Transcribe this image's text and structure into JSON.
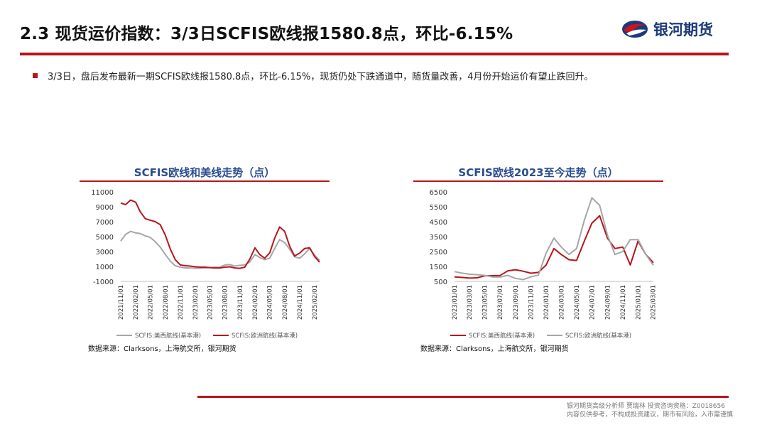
{
  "header": {
    "title": "2.3 现货运价指数：3/3日SCFIS欧线报1580.8点，环比-6.15%",
    "logo_text": "银河期货"
  },
  "bullet": {
    "text": "3/3日，盘后发布最新一期SCFIS欧线报1580.8点，环比-6.15%，现货仍处下跌通道中，随货量改善，4月份开始运价有望止跌回升。"
  },
  "colors": {
    "accent_red": "#b7151b",
    "navy": "#1f3a7a",
    "grey_series": "#a6a6a6"
  },
  "chart_data": [
    {
      "type": "line",
      "title": "SCFIS欧线和美线走势（点）",
      "ylim": [
        -1000,
        11000
      ],
      "yticks": [
        11000,
        9000,
        7000,
        5000,
        3000,
        1000,
        -1000
      ],
      "x_ticks": [
        "2021/11/01",
        "2022/02/01",
        "2022/05/01",
        "2022/08/01",
        "2022/11/01",
        "2023/02/01",
        "2023/05/01",
        "2023/08/01",
        "2023/11/01",
        "2024/02/01",
        "2024/05/01",
        "2024/08/01",
        "2024/11/01",
        "2025/02/01"
      ],
      "x_range": [
        "2021/11/01",
        "2025/03/03"
      ],
      "series": [
        {
          "name": "SCFIS:美西航线(基本港)",
          "color": "#a6a6a6",
          "points": [
            [
              "2021/11/01",
              4400
            ],
            [
              "2021/12/01",
              5300
            ],
            [
              "2022/01/01",
              5700
            ],
            [
              "2022/02/01",
              5500
            ],
            [
              "2022/03/01",
              5400
            ],
            [
              "2022/04/01",
              5100
            ],
            [
              "2022/05/01",
              4900
            ],
            [
              "2022/06/01",
              4300
            ],
            [
              "2022/07/01",
              3600
            ],
            [
              "2022/08/01",
              2600
            ],
            [
              "2022/09/01",
              1700
            ],
            [
              "2022/10/01",
              1100
            ],
            [
              "2022/11/01",
              900
            ],
            [
              "2022/12/01",
              800
            ],
            [
              "2023/01/01",
              800
            ],
            [
              "2023/02/01",
              750
            ],
            [
              "2023/03/01",
              750
            ],
            [
              "2023/04/01",
              800
            ],
            [
              "2023/05/01",
              850
            ],
            [
              "2023/06/01",
              900
            ],
            [
              "2023/07/01",
              900
            ],
            [
              "2023/08/01",
              1200
            ],
            [
              "2023/09/01",
              1250
            ],
            [
              "2023/10/01",
              1050
            ],
            [
              "2023/11/01",
              1150
            ],
            [
              "2023/12/01",
              1200
            ],
            [
              "2024/01/01",
              1600
            ],
            [
              "2024/02/01",
              2600
            ],
            [
              "2024/03/01",
              2200
            ],
            [
              "2024/04/01",
              1900
            ],
            [
              "2024/05/01",
              2100
            ],
            [
              "2024/06/01",
              3400
            ],
            [
              "2024/07/01",
              4600
            ],
            [
              "2024/08/01",
              4200
            ],
            [
              "2024/09/01",
              3300
            ],
            [
              "2024/10/01",
              2300
            ],
            [
              "2024/11/01",
              2100
            ],
            [
              "2024/12/01",
              2700
            ],
            [
              "2025/01/01",
              3400
            ],
            [
              "2025/02/01",
              2500
            ],
            [
              "2025/03/03",
              1800
            ]
          ]
        },
        {
          "name": "SCFIS:欧洲航线(基本港)",
          "color": "#b7151b",
          "points": [
            [
              "2021/11/01",
              9500
            ],
            [
              "2021/12/01",
              9300
            ],
            [
              "2022/01/01",
              9900
            ],
            [
              "2022/02/01",
              9600
            ],
            [
              "2022/03/01",
              8300
            ],
            [
              "2022/04/01",
              7400
            ],
            [
              "2022/05/01",
              7200
            ],
            [
              "2022/06/01",
              7000
            ],
            [
              "2022/07/01",
              6600
            ],
            [
              "2022/08/01",
              5200
            ],
            [
              "2022/09/01",
              3300
            ],
            [
              "2022/10/01",
              1900
            ],
            [
              "2022/11/01",
              1200
            ],
            [
              "2022/12/01",
              1100
            ],
            [
              "2023/01/01",
              1050
            ],
            [
              "2023/02/01",
              950
            ],
            [
              "2023/03/01",
              900
            ],
            [
              "2023/04/01",
              900
            ],
            [
              "2023/05/01",
              850
            ],
            [
              "2023/06/01",
              800
            ],
            [
              "2023/07/01",
              800
            ],
            [
              "2023/08/01",
              900
            ],
            [
              "2023/09/01",
              950
            ],
            [
              "2023/10/01",
              800
            ],
            [
              "2023/11/01",
              750
            ],
            [
              "2023/12/01",
              900
            ],
            [
              "2024/01/01",
              2000
            ],
            [
              "2024/02/01",
              3500
            ],
            [
              "2024/03/01",
              2600
            ],
            [
              "2024/04/01",
              2100
            ],
            [
              "2024/05/01",
              2800
            ],
            [
              "2024/06/01",
              4800
            ],
            [
              "2024/07/01",
              6300
            ],
            [
              "2024/08/01",
              5700
            ],
            [
              "2024/09/01",
              3700
            ],
            [
              "2024/10/01",
              2400
            ],
            [
              "2024/11/01",
              2800
            ],
            [
              "2024/12/01",
              3400
            ],
            [
              "2025/01/01",
              3500
            ],
            [
              "2025/02/01",
              2300
            ],
            [
              "2025/03/03",
              1580.8
            ]
          ]
        }
      ],
      "legend": "bottom",
      "source": "数据来源：Clarksons，上海航交所，银河期货"
    },
    {
      "type": "line",
      "title": "SCFIS欧线2023至今走势（点）",
      "ylim": [
        500,
        6500
      ],
      "yticks": [
        6500,
        5500,
        4500,
        3500,
        2500,
        1500,
        500
      ],
      "x_ticks": [
        "2023/01/01",
        "2023/03/01",
        "2023/05/01",
        "2023/07/01",
        "2023/09/01",
        "2023/11/01",
        "2024/01/01",
        "2024/03/01",
        "2024/05/01",
        "2024/07/01",
        "2024/09/01",
        "2024/11/01",
        "2025/01/01",
        "2025/03/01"
      ],
      "x_range": [
        "2023/01/01",
        "2025/03/03"
      ],
      "series": [
        {
          "name": "SCFIS:美西航线(基本港)",
          "color": "#b7151b",
          "points": [
            [
              "2023/01/01",
              800
            ],
            [
              "2023/02/01",
              760
            ],
            [
              "2023/03/01",
              720
            ],
            [
              "2023/04/01",
              740
            ],
            [
              "2023/05/01",
              870
            ],
            [
              "2023/06/01",
              880
            ],
            [
              "2023/07/01",
              890
            ],
            [
              "2023/08/01",
              1200
            ],
            [
              "2023/09/01",
              1280
            ],
            [
              "2023/10/01",
              1180
            ],
            [
              "2023/11/01",
              1050
            ],
            [
              "2023/12/01",
              1100
            ],
            [
              "2024/01/01",
              1600
            ],
            [
              "2024/02/01",
              2700
            ],
            [
              "2024/03/01",
              2300
            ],
            [
              "2024/04/01",
              1950
            ],
            [
              "2024/05/01",
              1900
            ],
            [
              "2024/06/01",
              3200
            ],
            [
              "2024/07/01",
              4400
            ],
            [
              "2024/08/01",
              4900
            ],
            [
              "2024/09/01",
              3400
            ],
            [
              "2024/10/01",
              2700
            ],
            [
              "2024/11/01",
              2800
            ],
            [
              "2024/12/01",
              1600
            ],
            [
              "2025/01/01",
              3200
            ],
            [
              "2025/02/01",
              2300
            ],
            [
              "2025/03/03",
              1750
            ]
          ]
        },
        {
          "name": "SCFIS:欧洲航线(基本港)",
          "color": "#a6a6a6",
          "points": [
            [
              "2023/01/01",
              1150
            ],
            [
              "2023/02/01",
              1050
            ],
            [
              "2023/03/01",
              980
            ],
            [
              "2023/04/01",
              950
            ],
            [
              "2023/05/01",
              900
            ],
            [
              "2023/06/01",
              800
            ],
            [
              "2023/07/01",
              790
            ],
            [
              "2023/08/01",
              900
            ],
            [
              "2023/09/01",
              700
            ],
            [
              "2023/10/01",
              620
            ],
            [
              "2023/11/01",
              800
            ],
            [
              "2023/12/01",
              920
            ],
            [
              "2024/01/01",
              2400
            ],
            [
              "2024/02/01",
              3400
            ],
            [
              "2024/03/01",
              2800
            ],
            [
              "2024/04/01",
              2300
            ],
            [
              "2024/05/01",
              2700
            ],
            [
              "2024/06/01",
              4600
            ],
            [
              "2024/07/01",
              6100
            ],
            [
              "2024/08/01",
              5600
            ],
            [
              "2024/09/01",
              3600
            ],
            [
              "2024/10/01",
              2300
            ],
            [
              "2024/11/01",
              2500
            ],
            [
              "2024/12/01",
              3300
            ],
            [
              "2025/01/01",
              3300
            ],
            [
              "2025/02/01",
              2300
            ],
            [
              "2025/03/03",
              1580.8
            ]
          ]
        }
      ],
      "legend": "bottom",
      "source": "数据来源：Clarksons，上海航交所，银河期货"
    }
  ],
  "footer": {
    "line1": "银河期货高级分析师 贾瑞林 投资咨询资格：Z0018656",
    "line2": "内容仅供参考，不构成投资建议，期市有风险，入市需谨慎"
  }
}
